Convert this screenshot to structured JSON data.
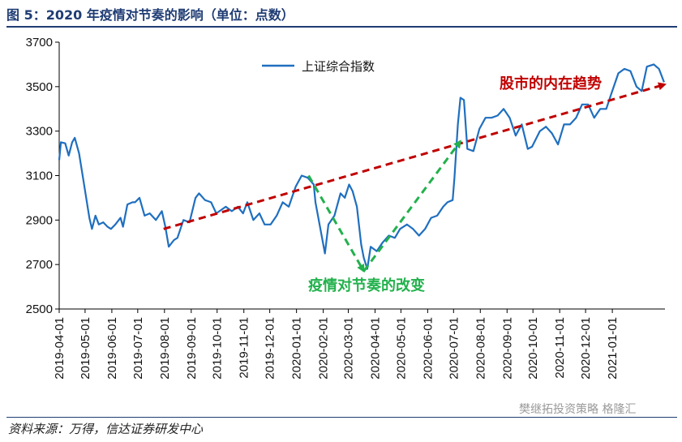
{
  "figure": {
    "title": "图 5：2020 年疫情对节奏的影响（单位：点数）",
    "source": "资料来源：万得，信达证券研发中心",
    "watermark": "樊继拓投资策略 格隆汇"
  },
  "chart_data": {
    "type": "line",
    "title": "",
    "xlabel": "",
    "ylabel": "",
    "ylim": [
      2500,
      3700
    ],
    "yticks": [
      2500,
      2700,
      2900,
      3100,
      3300,
      3500,
      3700
    ],
    "xticks": [
      "2019-04-01",
      "2019-05-01",
      "2019-06-01",
      "2019-07-01",
      "2019-08-01",
      "2019-09-01",
      "2019-10-01",
      "2019-11-01",
      "2019-12-01",
      "2020-01-01",
      "2020-02-01",
      "2020-03-01",
      "2020-04-01",
      "2020-05-01",
      "2020-06-01",
      "2020-07-01",
      "2020-08-01",
      "2020-09-01",
      "2020-10-01",
      "2020-11-01",
      "2020-12-01",
      "2021-01-01"
    ],
    "legend": {
      "position": "top-left",
      "entries": [
        "上证综合指数"
      ]
    },
    "grid": false,
    "colors": {
      "series": "#1f6fbf",
      "trend": "#c00000",
      "dip": "#22b14c",
      "axis": "#000000",
      "title": "#1f3c73"
    },
    "series": [
      {
        "name": "上证综合指数",
        "x": [
          "2019-04-01",
          "2019-04-03",
          "2019-04-08",
          "2019-04-12",
          "2019-04-16",
          "2019-04-19",
          "2019-04-24",
          "2019-04-29",
          "2019-05-06",
          "2019-05-09",
          "2019-05-13",
          "2019-05-17",
          "2019-05-22",
          "2019-05-27",
          "2019-05-31",
          "2019-06-05",
          "2019-06-11",
          "2019-06-14",
          "2019-06-19",
          "2019-06-25",
          "2019-06-28",
          "2019-07-03",
          "2019-07-09",
          "2019-07-15",
          "2019-07-22",
          "2019-07-29",
          "2019-08-02",
          "2019-08-06",
          "2019-08-12",
          "2019-08-16",
          "2019-08-23",
          "2019-08-30",
          "2019-09-06",
          "2019-09-10",
          "2019-09-17",
          "2019-09-24",
          "2019-09-30",
          "2019-10-11",
          "2019-10-18",
          "2019-10-25",
          "2019-10-31",
          "2019-11-05",
          "2019-11-12",
          "2019-11-19",
          "2019-11-25",
          "2019-12-02",
          "2019-12-09",
          "2019-12-16",
          "2019-12-23",
          "2019-12-31",
          "2020-01-07",
          "2020-01-14",
          "2020-01-21",
          "2020-01-23",
          "2020-02-03",
          "2020-02-07",
          "2020-02-14",
          "2020-02-21",
          "2020-02-26",
          "2020-03-02",
          "2020-03-06",
          "2020-03-11",
          "2020-03-16",
          "2020-03-19",
          "2020-03-23",
          "2020-03-27",
          "2020-04-03",
          "2020-04-10",
          "2020-04-17",
          "2020-04-24",
          "2020-04-30",
          "2020-05-08",
          "2020-05-15",
          "2020-05-22",
          "2020-05-29",
          "2020-06-05",
          "2020-06-12",
          "2020-06-19",
          "2020-06-24",
          "2020-06-30",
          "2020-07-02",
          "2020-07-06",
          "2020-07-09",
          "2020-07-13",
          "2020-07-17",
          "2020-07-24",
          "2020-07-31",
          "2020-08-07",
          "2020-08-14",
          "2020-08-21",
          "2020-08-28",
          "2020-09-04",
          "2020-09-11",
          "2020-09-18",
          "2020-09-25",
          "2020-09-30",
          "2020-10-09",
          "2020-10-16",
          "2020-10-23",
          "2020-10-30",
          "2020-11-06",
          "2020-11-13",
          "2020-11-20",
          "2020-11-27",
          "2020-12-04",
          "2020-12-11",
          "2020-12-18",
          "2020-12-25",
          "2020-12-31",
          "2021-01-08",
          "2021-01-15",
          "2021-01-22",
          "2021-01-29",
          "2021-02-04",
          "2021-02-10",
          "2021-02-18",
          "2021-02-24",
          "2021-03-02"
        ],
        "values": [
          3170,
          3250,
          3245,
          3190,
          3250,
          3270,
          3200,
          3080,
          2910,
          2860,
          2920,
          2880,
          2890,
          2870,
          2860,
          2880,
          2910,
          2870,
          2970,
          2980,
          2980,
          3000,
          2920,
          2930,
          2900,
          2940,
          2870,
          2780,
          2810,
          2820,
          2900,
          2890,
          3000,
          3020,
          2990,
          2980,
          2930,
          2960,
          2940,
          2960,
          2930,
          2980,
          2900,
          2930,
          2880,
          2880,
          2920,
          2980,
          2960,
          3050,
          3100,
          3090,
          3060,
          2980,
          2750,
          2880,
          2920,
          3020,
          3000,
          3060,
          3030,
          2960,
          2790,
          2730,
          2680,
          2780,
          2760,
          2800,
          2830,
          2820,
          2860,
          2880,
          2860,
          2830,
          2860,
          2910,
          2920,
          2960,
          2980,
          2990,
          3090,
          3330,
          3450,
          3440,
          3220,
          3210,
          3310,
          3360,
          3360,
          3370,
          3400,
          3360,
          3280,
          3330,
          3220,
          3230,
          3300,
          3320,
          3290,
          3240,
          3330,
          3330,
          3360,
          3420,
          3420,
          3360,
          3400,
          3400,
          3470,
          3560,
          3580,
          3570,
          3500,
          3480,
          3590,
          3600,
          3580,
          3520
        ]
      }
    ],
    "annotations": [
      {
        "text": "股市的内在趋势",
        "color": "#c00000"
      },
      {
        "text": "疫情对节奏的改变",
        "color": "#22b14c"
      }
    ],
    "trend_line": {
      "from": [
        "2019-07-31",
        2860
      ],
      "to": [
        "2021-03-03",
        3510
      ]
    },
    "dip_lines": [
      {
        "from": [
          "2020-01-15",
          3100
        ],
        "to": [
          "2020-03-19",
          2670
        ]
      },
      {
        "from": [
          "2020-03-19",
          2670
        ],
        "to": [
          "2020-07-09",
          3255
        ]
      }
    ]
  }
}
